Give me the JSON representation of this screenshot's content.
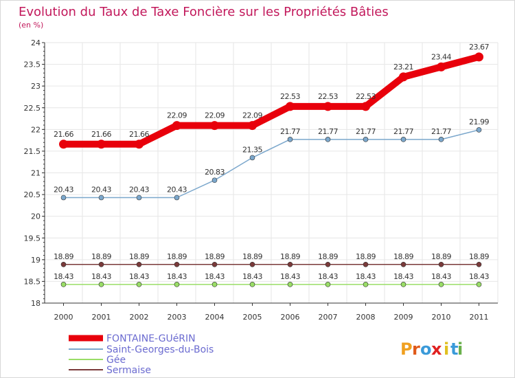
{
  "chart_data": {
    "type": "line",
    "title": "Evolution du Taux de Taxe Foncière sur les Propriétés Bâties",
    "subtitle": "(en %)",
    "x": [
      "2000",
      "2001",
      "2002",
      "2003",
      "2004",
      "2005",
      "2006",
      "2007",
      "2008",
      "2009",
      "2010",
      "2011"
    ],
    "ylim": [
      18,
      24
    ],
    "yticks": [
      "18",
      "18.5",
      "19",
      "19.5",
      "20",
      "20.5",
      "21",
      "21.5",
      "22",
      "22.5",
      "23",
      "23.5",
      "24"
    ],
    "series": [
      {
        "name": "FONTAINE-GUéRIN",
        "color": "#e8000b",
        "values": [
          21.66,
          21.66,
          21.66,
          22.09,
          22.09,
          22.09,
          22.53,
          22.53,
          22.53,
          23.21,
          23.44,
          23.67
        ],
        "labels": [
          "21.66",
          "21.66",
          "21.66",
          "22.09",
          "22.09",
          "22.09",
          "22.53",
          "22.53",
          "22.53",
          "23.21",
          "23.44",
          "23.67"
        ]
      },
      {
        "name": "Saint-Georges-du-Bois",
        "color": "#7ba7cc",
        "values": [
          20.43,
          20.43,
          20.43,
          20.43,
          20.83,
          21.35,
          21.77,
          21.77,
          21.77,
          21.77,
          21.77,
          21.99
        ],
        "labels": [
          "20.43",
          "20.43",
          "20.43",
          "20.43",
          "20.83",
          "21.35",
          "21.77",
          "21.77",
          "21.77",
          "21.77",
          "21.77",
          "21.99"
        ]
      },
      {
        "name": "Gée",
        "color": "#99dd66",
        "values": [
          18.43,
          18.43,
          18.43,
          18.43,
          18.43,
          18.43,
          18.43,
          18.43,
          18.43,
          18.43,
          18.43,
          18.43
        ],
        "labels": [
          "18.43",
          "18.43",
          "18.43",
          "18.43",
          "18.43",
          "18.43",
          "18.43",
          "18.43",
          "18.43",
          "18.43",
          "18.43",
          "18.43"
        ]
      },
      {
        "name": "Sermaise",
        "color": "#7a3a3a",
        "values": [
          18.89,
          18.89,
          18.89,
          18.89,
          18.89,
          18.89,
          18.89,
          18.89,
          18.89,
          18.89,
          18.89,
          18.89
        ],
        "labels": [
          "18.89",
          "18.89",
          "18.89",
          "18.89",
          "18.89",
          "18.89",
          "18.89",
          "18.89",
          "18.89",
          "18.89",
          "18.89",
          "18.89"
        ]
      }
    ],
    "legend": [
      "FONTAINE-GUéRIN",
      "Saint-Georges-du-Bois",
      "Gée",
      "Sermaise"
    ],
    "legend_position": "bottom-left"
  },
  "logo": {
    "text": "Proxiti",
    "letter_colors": [
      "#f0a020",
      "#e05a1a",
      "#3a9ad9",
      "#e02020",
      "#e0c020",
      "#3a9ad9",
      "#6ab04c"
    ]
  }
}
